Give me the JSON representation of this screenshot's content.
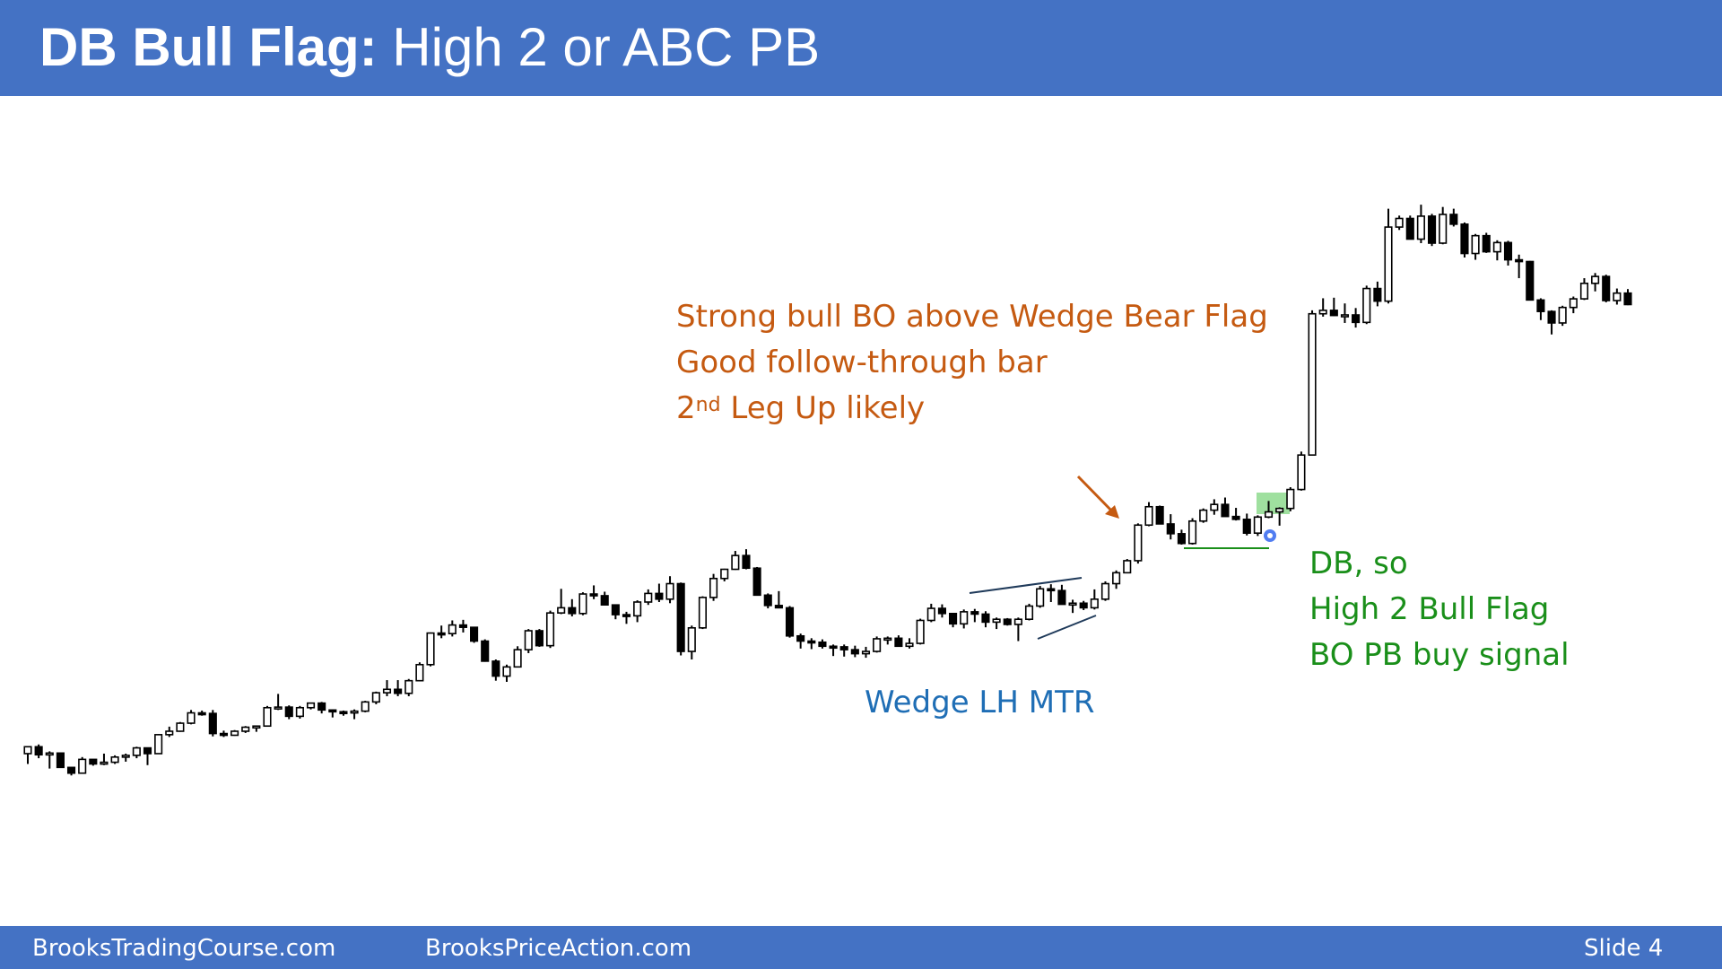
{
  "slide": {
    "title_bold": "DB Bull Flag:",
    "title_rest": " High 2 or ABC PB"
  },
  "annotations": {
    "orange": {
      "line1": "Strong bull BO above Wedge Bear Flag",
      "line2": "Good follow-through bar",
      "line3_num": "2",
      "line3_sup": "nd",
      "line3_rest": " Leg Up likely"
    },
    "green": {
      "line1": "DB, so",
      "line2": "High 2 Bull Flag",
      "line3": "BO PB buy signal"
    },
    "blue": {
      "line1": "Wedge LH MTR"
    }
  },
  "footer": {
    "site1": "BrooksTradingCourse.com",
    "site2": "BrooksPriceAction.com",
    "slide_label": "Slide  4"
  },
  "colors": {
    "header_bg": "#4472c4",
    "orange": "#c55a11",
    "green": "#1a8f1a",
    "blue": "#1f6eb5",
    "highlight": "#7fd67f"
  },
  "chart_data": {
    "type": "candlestick",
    "title": "",
    "xlabel": "",
    "ylabel": "",
    "y_axis": "price (relative, unlabeled)",
    "ylim": [
      0,
      100
    ],
    "bars": [
      [
        3.6,
        4.8,
        1.8,
        4.8
      ],
      [
        4.8,
        5.2,
        2.8,
        3.4
      ],
      [
        3.4,
        4.0,
        1.0,
        3.7
      ],
      [
        3.7,
        3.7,
        1.2,
        1.2
      ],
      [
        1.2,
        1.2,
        -0.2,
        0.2
      ],
      [
        0.2,
        3.0,
        0.2,
        2.6
      ],
      [
        2.6,
        2.6,
        1.5,
        1.8
      ],
      [
        1.8,
        3.6,
        1.6,
        2.1
      ],
      [
        2.1,
        3.3,
        1.8,
        3.0
      ],
      [
        3.0,
        3.6,
        2.2,
        3.3
      ],
      [
        3.3,
        4.8,
        2.8,
        4.6
      ],
      [
        4.6,
        4.6,
        1.6,
        3.6
      ],
      [
        3.6,
        7.0,
        3.6,
        6.9
      ],
      [
        6.9,
        8.3,
        6.5,
        7.5
      ],
      [
        7.5,
        9.1,
        7.4,
        8.9
      ],
      [
        8.9,
        11.2,
        8.7,
        10.7
      ],
      [
        10.7,
        11.1,
        10.2,
        10.6
      ],
      [
        10.6,
        11.2,
        6.6,
        7.1
      ],
      [
        7.1,
        7.6,
        6.5,
        6.8
      ],
      [
        6.8,
        7.7,
        6.7,
        7.5
      ],
      [
        7.5,
        8.4,
        7.2,
        8.2
      ],
      [
        8.2,
        8.4,
        7.4,
        8.4
      ],
      [
        8.4,
        11.9,
        8.3,
        11.6
      ],
      [
        11.6,
        14.0,
        11.2,
        11.7
      ],
      [
        11.7,
        12.0,
        9.6,
        10.1
      ],
      [
        10.1,
        11.9,
        9.7,
        11.6
      ],
      [
        11.6,
        12.5,
        11.3,
        12.4
      ],
      [
        12.4,
        12.6,
        10.6,
        11.2
      ],
      [
        11.2,
        11.3,
        9.9,
        10.9
      ],
      [
        10.9,
        11.1,
        10.2,
        10.8
      ],
      [
        10.8,
        11.3,
        9.6,
        11.0
      ],
      [
        11.0,
        12.8,
        10.8,
        12.6
      ],
      [
        12.6,
        14.4,
        12.2,
        14.2
      ],
      [
        14.2,
        16.4,
        13.6,
        14.8
      ],
      [
        14.8,
        16.4,
        13.6,
        14.1
      ],
      [
        14.1,
        16.6,
        13.6,
        16.3
      ],
      [
        16.3,
        19.5,
        16.2,
        19.1
      ],
      [
        19.1,
        24.7,
        18.8,
        24.6
      ],
      [
        24.6,
        25.9,
        23.7,
        24.5
      ],
      [
        24.5,
        26.8,
        24.0,
        26.0
      ],
      [
        26.0,
        26.9,
        24.7,
        25.6
      ],
      [
        25.6,
        25.6,
        22.9,
        23.2
      ],
      [
        23.2,
        23.5,
        19.6,
        19.7
      ],
      [
        19.7,
        20.0,
        16.3,
        17.1
      ],
      [
        17.1,
        19.1,
        16.1,
        18.7
      ],
      [
        18.7,
        22.3,
        18.6,
        21.7
      ],
      [
        21.7,
        25.3,
        21.1,
        25.0
      ],
      [
        25.0,
        25.3,
        22.2,
        22.4
      ],
      [
        22.4,
        28.5,
        22.0,
        28.1
      ],
      [
        28.1,
        32.3,
        27.9,
        29.0
      ],
      [
        29.0,
        30.5,
        27.5,
        28.0
      ],
      [
        28.0,
        31.7,
        27.7,
        31.4
      ],
      [
        31.4,
        32.9,
        30.5,
        31.1
      ],
      [
        31.1,
        31.8,
        29.6,
        29.5
      ],
      [
        29.5,
        29.5,
        27.0,
        27.8
      ],
      [
        27.8,
        28.3,
        26.2,
        27.6
      ],
      [
        27.6,
        30.3,
        26.5,
        30.0
      ],
      [
        30.0,
        32.2,
        29.5,
        31.5
      ],
      [
        31.5,
        33.2,
        30.0,
        30.5
      ],
      [
        30.5,
        34.5,
        29.8,
        33.2
      ],
      [
        33.2,
        33.4,
        20.7,
        21.4
      ],
      [
        21.4,
        25.9,
        20.0,
        25.5
      ],
      [
        25.5,
        31.0,
        25.3,
        30.8
      ],
      [
        30.8,
        34.9,
        30.2,
        34.1
      ],
      [
        34.1,
        35.8,
        33.6,
        35.7
      ],
      [
        35.7,
        38.9,
        35.6,
        38.1
      ],
      [
        38.1,
        39.2,
        35.7,
        35.9
      ],
      [
        35.9,
        36.1,
        31.2,
        31.2
      ],
      [
        31.2,
        31.5,
        28.9,
        29.4
      ],
      [
        29.4,
        31.9,
        28.9,
        29.0
      ],
      [
        29.0,
        29.3,
        23.8,
        24.1
      ],
      [
        24.1,
        24.5,
        21.9,
        23.2
      ],
      [
        23.2,
        23.7,
        21.8,
        23.0
      ],
      [
        23.0,
        23.5,
        21.9,
        22.3
      ],
      [
        22.3,
        22.6,
        20.6,
        22.2
      ],
      [
        22.2,
        22.6,
        20.5,
        21.7
      ],
      [
        21.7,
        22.4,
        20.4,
        21.0
      ],
      [
        21.0,
        22.2,
        20.3,
        21.4
      ],
      [
        21.4,
        24.0,
        21.2,
        23.6
      ],
      [
        23.6,
        24.0,
        22.6,
        23.7
      ],
      [
        23.7,
        24.2,
        22.5,
        22.3
      ],
      [
        22.3,
        23.7,
        21.9,
        22.8
      ],
      [
        22.8,
        27.1,
        22.6,
        26.8
      ],
      [
        26.8,
        29.7,
        26.5,
        28.9
      ],
      [
        28.9,
        29.6,
        27.3,
        28.0
      ],
      [
        28.0,
        28.1,
        25.6,
        26.2
      ],
      [
        26.2,
        28.7,
        25.4,
        28.3
      ],
      [
        28.3,
        28.8,
        26.5,
        27.9
      ],
      [
        27.9,
        28.4,
        25.6,
        26.5
      ],
      [
        26.5,
        27.3,
        25.3,
        27.0
      ],
      [
        27.0,
        27.2,
        25.9,
        26.1
      ],
      [
        26.1,
        27.3,
        23.2,
        27.0
      ],
      [
        27.0,
        29.7,
        26.8,
        29.3
      ],
      [
        29.3,
        32.8,
        29.0,
        32.3
      ],
      [
        32.3,
        33.1,
        30.0,
        32.0
      ],
      [
        32.0,
        33.0,
        29.8,
        29.6
      ],
      [
        29.6,
        30.4,
        28.1,
        29.8
      ],
      [
        29.8,
        30.2,
        28.6,
        29.0
      ],
      [
        29.0,
        32.2,
        28.7,
        30.5
      ],
      [
        30.5,
        33.6,
        30.2,
        33.2
      ],
      [
        33.2,
        35.5,
        32.3,
        35.1
      ],
      [
        35.1,
        37.5,
        35.0,
        37.2
      ],
      [
        37.2,
        43.7,
        36.7,
        43.4
      ],
      [
        43.4,
        47.4,
        43.2,
        46.6
      ],
      [
        46.6,
        46.8,
        44.0,
        43.6
      ],
      [
        43.6,
        45.3,
        40.9,
        41.9
      ],
      [
        41.9,
        42.6,
        40.0,
        40.2
      ],
      [
        40.2,
        44.6,
        40.0,
        44.1
      ],
      [
        44.1,
        46.3,
        43.8,
        46.0
      ],
      [
        46.0,
        47.9,
        45.2,
        47.0
      ],
      [
        47.0,
        48.2,
        45.2,
        44.9
      ],
      [
        44.9,
        46.4,
        44.2,
        44.4
      ],
      [
        44.4,
        45.4,
        41.6,
        42.0
      ],
      [
        42.0,
        45.1,
        41.5,
        44.8
      ],
      [
        44.8,
        47.6,
        44.6,
        45.7
      ],
      [
        45.7,
        46.5,
        43.3,
        46.3
      ],
      [
        46.3,
        50.0,
        45.8,
        49.6
      ],
      [
        49.6,
        56.2,
        49.4,
        55.6
      ],
      [
        55.6,
        80.8,
        55.6,
        80.2
      ],
      [
        80.2,
        82.9,
        79.7,
        80.8
      ],
      [
        80.8,
        83.0,
        79.8,
        79.9
      ],
      [
        79.9,
        82.0,
        78.6,
        80.0
      ],
      [
        80.0,
        81.2,
        77.8,
        78.7
      ],
      [
        78.7,
        85.1,
        78.4,
        84.6
      ],
      [
        84.6,
        85.8,
        81.5,
        82.4
      ],
      [
        82.4,
        98.5,
        82.0,
        95.3
      ],
      [
        95.3,
        97.3,
        94.8,
        96.8
      ],
      [
        96.8,
        97.3,
        93.9,
        93.2
      ],
      [
        93.2,
        99.2,
        92.5,
        97.2
      ],
      [
        97.2,
        97.6,
        92.0,
        92.5
      ],
      [
        92.5,
        98.8,
        92.3,
        97.5
      ],
      [
        97.5,
        98.5,
        95.4,
        95.8
      ],
      [
        95.8,
        96.1,
        90.0,
        90.7
      ],
      [
        90.7,
        94.1,
        89.6,
        93.8
      ],
      [
        93.8,
        94.3,
        90.8,
        91.0
      ],
      [
        91.0,
        93.0,
        89.5,
        92.6
      ],
      [
        92.6,
        92.9,
        88.6,
        89.6
      ],
      [
        89.6,
        90.5,
        86.4,
        89.3
      ],
      [
        89.3,
        89.4,
        82.7,
        82.6
      ],
      [
        82.6,
        82.9,
        79.1,
        80.6
      ],
      [
        80.6,
        80.8,
        76.6,
        78.6
      ],
      [
        78.6,
        81.6,
        78.1,
        81.3
      ],
      [
        81.3,
        83.2,
        80.3,
        82.8
      ],
      [
        82.8,
        86.4,
        82.6,
        85.5
      ],
      [
        85.5,
        87.3,
        84.1,
        86.7
      ],
      [
        86.7,
        87.0,
        82.2,
        82.5
      ],
      [
        82.5,
        84.6,
        81.8,
        83.8
      ],
      [
        83.8,
        84.5,
        81.7,
        81.8
      ]
    ],
    "annotations": [
      "Strong bull BO above Wedge Bear Flag",
      "Good follow-through bar",
      "2nd Leg Up likely",
      "DB, so",
      "High 2 Bull Flag",
      "BO PB buy signal",
      "Wedge LH MTR"
    ]
  }
}
